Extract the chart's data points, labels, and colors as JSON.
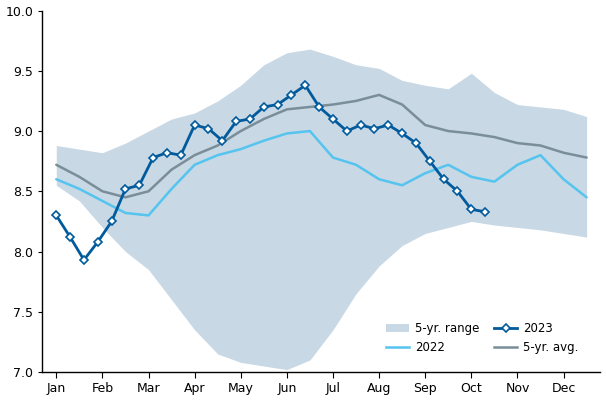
{
  "months": [
    "Jan",
    "Feb",
    "Mar",
    "Apr",
    "May",
    "Jun",
    "Jul",
    "Aug",
    "Sep",
    "Oct",
    "Nov",
    "Dec"
  ],
  "month_x": [
    0,
    1,
    2,
    3,
    4,
    5,
    6,
    7,
    8,
    9,
    10,
    11
  ],
  "x_2023": [
    0.0,
    0.3,
    0.6,
    0.9,
    1.2,
    1.5,
    1.8,
    2.1,
    2.4,
    2.7,
    3.0,
    3.3,
    3.6,
    3.9,
    4.2,
    4.5,
    4.8,
    5.1,
    5.4,
    5.7,
    6.0,
    6.3,
    6.6,
    6.9,
    7.2,
    7.5,
    7.8,
    8.1,
    8.4,
    8.7,
    9.0,
    9.3
  ],
  "y_2023": [
    8.3,
    8.12,
    7.93,
    8.08,
    8.25,
    8.52,
    8.55,
    8.78,
    8.82,
    8.8,
    9.05,
    9.02,
    8.92,
    9.08,
    9.1,
    9.2,
    9.22,
    9.3,
    9.38,
    9.2,
    9.1,
    9.0,
    9.05,
    9.02,
    9.05,
    8.98,
    8.9,
    8.75,
    8.6,
    8.5,
    8.35,
    8.33
  ],
  "x_range": [
    0.0,
    0.5,
    1.0,
    1.5,
    2.0,
    2.5,
    3.0,
    3.5,
    4.0,
    4.5,
    5.0,
    5.5,
    6.0,
    6.5,
    7.0,
    7.5,
    8.0,
    8.5,
    9.0,
    9.5,
    10.0,
    10.5,
    11.0,
    11.5
  ],
  "range_upper": [
    8.88,
    8.85,
    8.82,
    8.9,
    9.0,
    9.1,
    9.15,
    9.25,
    9.38,
    9.55,
    9.65,
    9.68,
    9.62,
    9.55,
    9.52,
    9.42,
    9.38,
    9.35,
    9.48,
    9.32,
    9.22,
    9.2,
    9.18,
    9.12
  ],
  "range_lower": [
    8.55,
    8.42,
    8.2,
    8.0,
    7.85,
    7.6,
    7.35,
    7.15,
    7.08,
    7.05,
    7.02,
    7.1,
    7.35,
    7.65,
    7.88,
    8.05,
    8.15,
    8.2,
    8.25,
    8.22,
    8.2,
    8.18,
    8.15,
    8.12
  ],
  "x_2022": [
    0.0,
    0.5,
    1.0,
    1.5,
    2.0,
    2.5,
    3.0,
    3.5,
    4.0,
    4.5,
    5.0,
    5.5,
    6.0,
    6.5,
    7.0,
    7.5,
    8.0,
    8.5,
    9.0,
    9.5,
    10.0,
    10.5,
    11.0,
    11.5
  ],
  "y_2022": [
    8.6,
    8.52,
    8.42,
    8.32,
    8.3,
    8.52,
    8.72,
    8.8,
    8.85,
    8.92,
    8.98,
    9.0,
    8.78,
    8.72,
    8.6,
    8.55,
    8.65,
    8.72,
    8.62,
    8.58,
    8.72,
    8.8,
    8.6,
    8.45
  ],
  "x_avg": [
    0.0,
    0.5,
    1.0,
    1.5,
    2.0,
    2.5,
    3.0,
    3.5,
    4.0,
    4.5,
    5.0,
    5.5,
    6.0,
    6.5,
    7.0,
    7.5,
    8.0,
    8.5,
    9.0,
    9.5,
    10.0,
    10.5,
    11.0,
    11.5
  ],
  "y_avg": [
    8.72,
    8.62,
    8.5,
    8.45,
    8.5,
    8.68,
    8.8,
    8.88,
    9.0,
    9.1,
    9.18,
    9.2,
    9.22,
    9.25,
    9.3,
    9.22,
    9.05,
    9.0,
    8.98,
    8.95,
    8.9,
    8.88,
    8.82,
    8.78
  ],
  "ylim": [
    7.0,
    10.0
  ],
  "yticks": [
    7.0,
    7.5,
    8.0,
    8.5,
    9.0,
    9.5,
    10.0
  ],
  "color_2023": "#005A9C",
  "color_2022": "#55C4EE",
  "color_avg": "#7A8E99",
  "color_range_fill": "#C8D8E5",
  "bg_color": "#FFFFFF"
}
